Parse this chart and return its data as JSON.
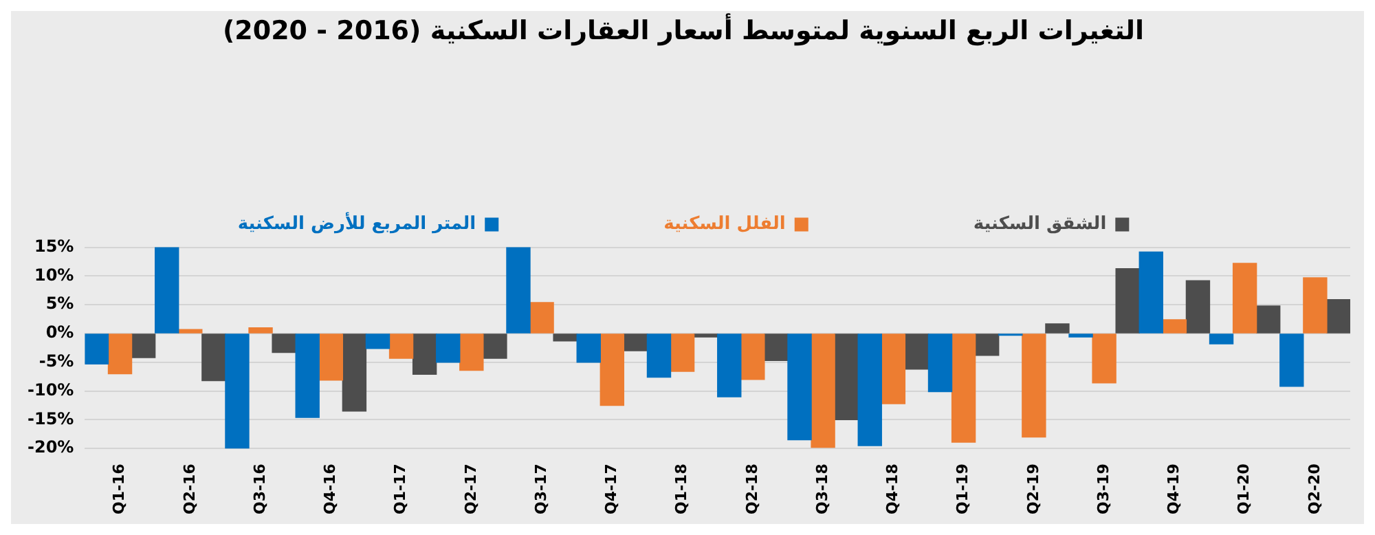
{
  "chart_data": {
    "type": "bar",
    "title": "التغيرات الربع السنوية لمتوسط أسعار العقارات السكنية (2016 - 2020)",
    "categories": [
      "Q1-16",
      "Q2-16",
      "Q3-16",
      "Q4-16",
      "Q1-17",
      "Q2-17",
      "Q3-17",
      "Q4-17",
      "Q1-18",
      "Q2-18",
      "Q3-18",
      "Q4-18",
      "Q1-19",
      "Q2-19",
      "Q3-19",
      "Q4-19",
      "Q1-20",
      "Q2-20"
    ],
    "series": [
      {
        "name": "المتر المربع للأرض السكنية",
        "color": "#0070c0",
        "values": [
          -5.3,
          15,
          -20,
          -14.6,
          -2.6,
          -5,
          15,
          -5,
          -7.6,
          -11,
          -18.5,
          -19.5,
          -10.1,
          -0.3,
          -0.6,
          14.2,
          -1.8,
          -9.2
        ]
      },
      {
        "name": "الفلل السكنية",
        "color": "#ed7d31",
        "values": [
          -7,
          0.7,
          1,
          -8.1,
          -4.3,
          -6.4,
          5.4,
          -12.5,
          -6.6,
          -8,
          -19.8,
          -12.2,
          -18.9,
          -18,
          -8.6,
          2.4,
          12.2,
          9.7
        ]
      },
      {
        "name": "الشقق السكنية",
        "color": "#4d4d4d",
        "values": [
          -4.2,
          -8.2,
          -3.3,
          -13.5,
          -7.1,
          -4.3,
          -1.3,
          -3,
          -0.6,
          -4.7,
          -15,
          -6.2,
          -3.8,
          1.7,
          11.3,
          9.2,
          4.8,
          5.9
        ]
      }
    ],
    "ylim": [
      -20,
      15
    ],
    "yticks": [
      {
        "value": -20,
        "label": "-20%"
      },
      {
        "value": -15,
        "label": "-15%"
      },
      {
        "value": -10,
        "label": "-10%"
      },
      {
        "value": -5,
        "label": "-5%"
      },
      {
        "value": 0,
        "label": "0%"
      },
      {
        "value": 5,
        "label": "5%"
      },
      {
        "value": 10,
        "label": "10%"
      },
      {
        "value": 15,
        "label": "15%"
      }
    ],
    "grid": "y",
    "legend": "top"
  }
}
